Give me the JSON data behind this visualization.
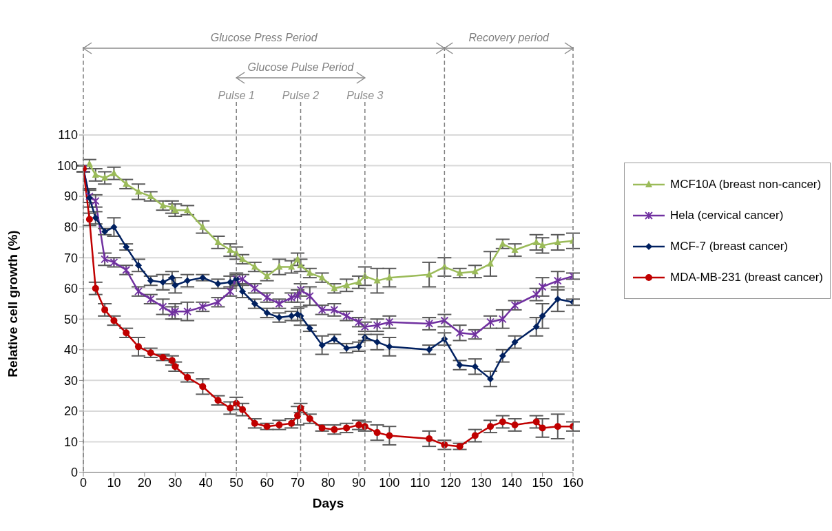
{
  "chart_data": {
    "type": "line",
    "xlabel": "Days",
    "ylabel": "Relative cell growth (%)",
    "xlim": [
      0,
      160
    ],
    "xticks": [
      0,
      10,
      20,
      30,
      40,
      50,
      60,
      70,
      80,
      90,
      100,
      110,
      120,
      130,
      140,
      150,
      160
    ],
    "ylim": [
      0,
      110
    ],
    "yticks": [
      0,
      10,
      20,
      30,
      40,
      50,
      60,
      70,
      80,
      90,
      100,
      110
    ],
    "grid": "y",
    "legend": "right",
    "line_style": "solid",
    "ref_lines": [
      {
        "axis": "x",
        "value": 0,
        "label": null,
        "line_style": "dashed",
        "color": "#7f7f7f"
      },
      {
        "axis": "x",
        "value": 50,
        "label": "Pulse 1",
        "line_style": "dashed",
        "color": "#7f7f7f"
      },
      {
        "axis": "x",
        "value": 71,
        "label": "Pulse 2",
        "line_style": "dashed",
        "color": "#7f7f7f"
      },
      {
        "axis": "x",
        "value": 92,
        "label": "Pulse 3",
        "line_style": "dashed",
        "color": "#7f7f7f"
      },
      {
        "axis": "x",
        "value": 118,
        "label": null,
        "line_style": "dashed",
        "color": "#7f7f7f"
      },
      {
        "axis": "x",
        "value": 160,
        "label": null,
        "line_style": "dashed",
        "color": "#7f7f7f"
      }
    ],
    "annotations": [
      "Glucose Press Period",
      "Recovery period",
      "Glucose Pulse Period"
    ],
    "series": [
      {
        "name": "MCF10A (breast non-cancer)",
        "color": "#9bbb59",
        "marker": "triangle",
        "x": [
          2,
          4,
          7,
          10,
          14,
          18,
          22,
          26,
          29,
          30,
          34,
          39,
          44,
          48,
          50,
          52,
          56,
          60,
          64,
          68,
          70,
          71,
          74,
          78,
          82,
          86,
          90,
          92,
          96,
          100,
          113,
          118,
          123,
          128,
          133,
          137,
          141,
          148,
          150,
          155,
          160
        ],
        "values": [
          100.5,
          97,
          96,
          97.5,
          94,
          91.5,
          90,
          87,
          86.5,
          85.5,
          85.5,
          80,
          75,
          72.5,
          71.5,
          69.5,
          67,
          64,
          67,
          67,
          69.5,
          67.5,
          65,
          63.5,
          60,
          61,
          62,
          64,
          62.5,
          63.5,
          64.5,
          67,
          65,
          65.5,
          68,
          74.5,
          72.5,
          75,
          74,
          75,
          75.5
        ],
        "errors": [
          1.5,
          2,
          2,
          2,
          1.5,
          2.5,
          1.5,
          1.5,
          2,
          2,
          1.5,
          2,
          2,
          2,
          2,
          1.5,
          1.5,
          1.5,
          2.5,
          2,
          2,
          2,
          1.5,
          1.5,
          1.5,
          2,
          2,
          3,
          4,
          3,
          4,
          3,
          1.5,
          2,
          4,
          1.5,
          2,
          2.5,
          2.5,
          2.5,
          2.5
        ]
      },
      {
        "name": "Hela (cervical cancer)",
        "color": "#7030a0",
        "marker": "cross",
        "x": [
          0,
          2,
          4,
          7,
          10,
          14,
          18,
          22,
          26,
          29,
          30,
          34,
          39,
          44,
          48,
          50,
          52,
          56,
          60,
          64,
          68,
          70,
          71,
          74,
          78,
          82,
          86,
          90,
          92,
          96,
          100,
          113,
          118,
          123,
          128,
          133,
          137,
          141,
          148,
          150,
          155,
          160
        ],
        "values": [
          99,
          90,
          88.5,
          69.5,
          68.5,
          66,
          59,
          56.5,
          54,
          52,
          52.5,
          52.5,
          54,
          55.5,
          59,
          63,
          63,
          60,
          57,
          55,
          57,
          57.5,
          59.5,
          57.5,
          53,
          53,
          51,
          49,
          47.5,
          48,
          49,
          48.5,
          49.5,
          45.5,
          45,
          49,
          50,
          54.5,
          58,
          60.5,
          62.5,
          64
        ],
        "errors": [
          1,
          2,
          2,
          2,
          1.5,
          1.5,
          1.5,
          1.5,
          2.5,
          2,
          2.5,
          3,
          1.5,
          1.5,
          1.5,
          1.5,
          1.5,
          1.5,
          1.5,
          1.5,
          1.5,
          2,
          2,
          3,
          1.5,
          2,
          1.5,
          1.5,
          1.5,
          2,
          2,
          2,
          2,
          2.5,
          1.5,
          2,
          3,
          1.5,
          2,
          3,
          3,
          1
        ]
      },
      {
        "name": "MCF-7 (breast cancer)",
        "color": "#002060",
        "marker": "diamond",
        "x": [
          0,
          2,
          4,
          7,
          10,
          14,
          18,
          22,
          26,
          29,
          30,
          34,
          39,
          44,
          48,
          50,
          52,
          56,
          60,
          64,
          68,
          70,
          71,
          74,
          78,
          82,
          86,
          90,
          92,
          96,
          100,
          113,
          118,
          123,
          128,
          133,
          137,
          141,
          148,
          150,
          155,
          160
        ],
        "values": [
          99,
          89.5,
          83,
          78.5,
          80,
          73.5,
          67.5,
          62.5,
          62,
          63.5,
          61,
          62.5,
          63.5,
          61.5,
          62,
          63,
          59,
          55,
          52,
          50.5,
          51,
          51.5,
          51,
          47,
          41.5,
          43.5,
          40.5,
          41,
          44,
          42.5,
          41,
          40,
          43.5,
          35,
          34.5,
          30.5,
          38,
          42.5,
          47.5,
          51,
          56.5,
          55.5
        ],
        "errors": [
          1,
          3,
          2,
          1,
          3,
          1,
          2,
          1.5,
          2.5,
          2,
          2.5,
          2,
          1,
          1.5,
          2,
          2,
          2,
          1.5,
          1.5,
          1.5,
          1.5,
          2,
          3,
          1,
          3,
          1.5,
          1.5,
          1.5,
          1,
          2.5,
          3,
          1.5,
          2,
          1.5,
          2.5,
          2.5,
          2,
          2,
          3,
          4,
          4,
          1
        ]
      },
      {
        "name": "MDA-MB-231 (breast cancer)",
        "color": "#c00000",
        "marker": "circle",
        "x": [
          0,
          2,
          4,
          7,
          10,
          14,
          18,
          22,
          26,
          29,
          30,
          34,
          39,
          44,
          48,
          50,
          52,
          56,
          60,
          64,
          68,
          70,
          71,
          74,
          78,
          82,
          86,
          90,
          92,
          96,
          100,
          113,
          118,
          123,
          128,
          133,
          137,
          141,
          148,
          150,
          155,
          160
        ],
        "values": [
          99,
          82.5,
          60,
          53,
          49.5,
          45.5,
          41,
          39,
          37.5,
          36.5,
          34.5,
          31,
          28,
          23.5,
          21,
          22.5,
          20.5,
          16,
          15,
          15.5,
          16,
          18.5,
          21,
          17.5,
          14.5,
          14,
          14.5,
          15.5,
          15,
          13,
          12,
          11,
          9,
          8.5,
          12,
          15,
          16.5,
          15.5,
          16.5,
          14.5,
          15,
          15
        ],
        "errors": [
          1,
          2,
          2,
          2,
          1.5,
          1.5,
          3,
          1.5,
          1,
          1.5,
          1.5,
          1.5,
          2.5,
          1.5,
          2,
          2,
          2,
          1.5,
          1,
          1.5,
          1.5,
          3,
          1.5,
          1.5,
          1,
          1.5,
          1.5,
          1.5,
          1.5,
          2.5,
          3,
          2.5,
          1.5,
          1,
          2,
          2,
          2,
          2,
          2,
          3,
          4,
          1.5
        ]
      }
    ]
  }
}
